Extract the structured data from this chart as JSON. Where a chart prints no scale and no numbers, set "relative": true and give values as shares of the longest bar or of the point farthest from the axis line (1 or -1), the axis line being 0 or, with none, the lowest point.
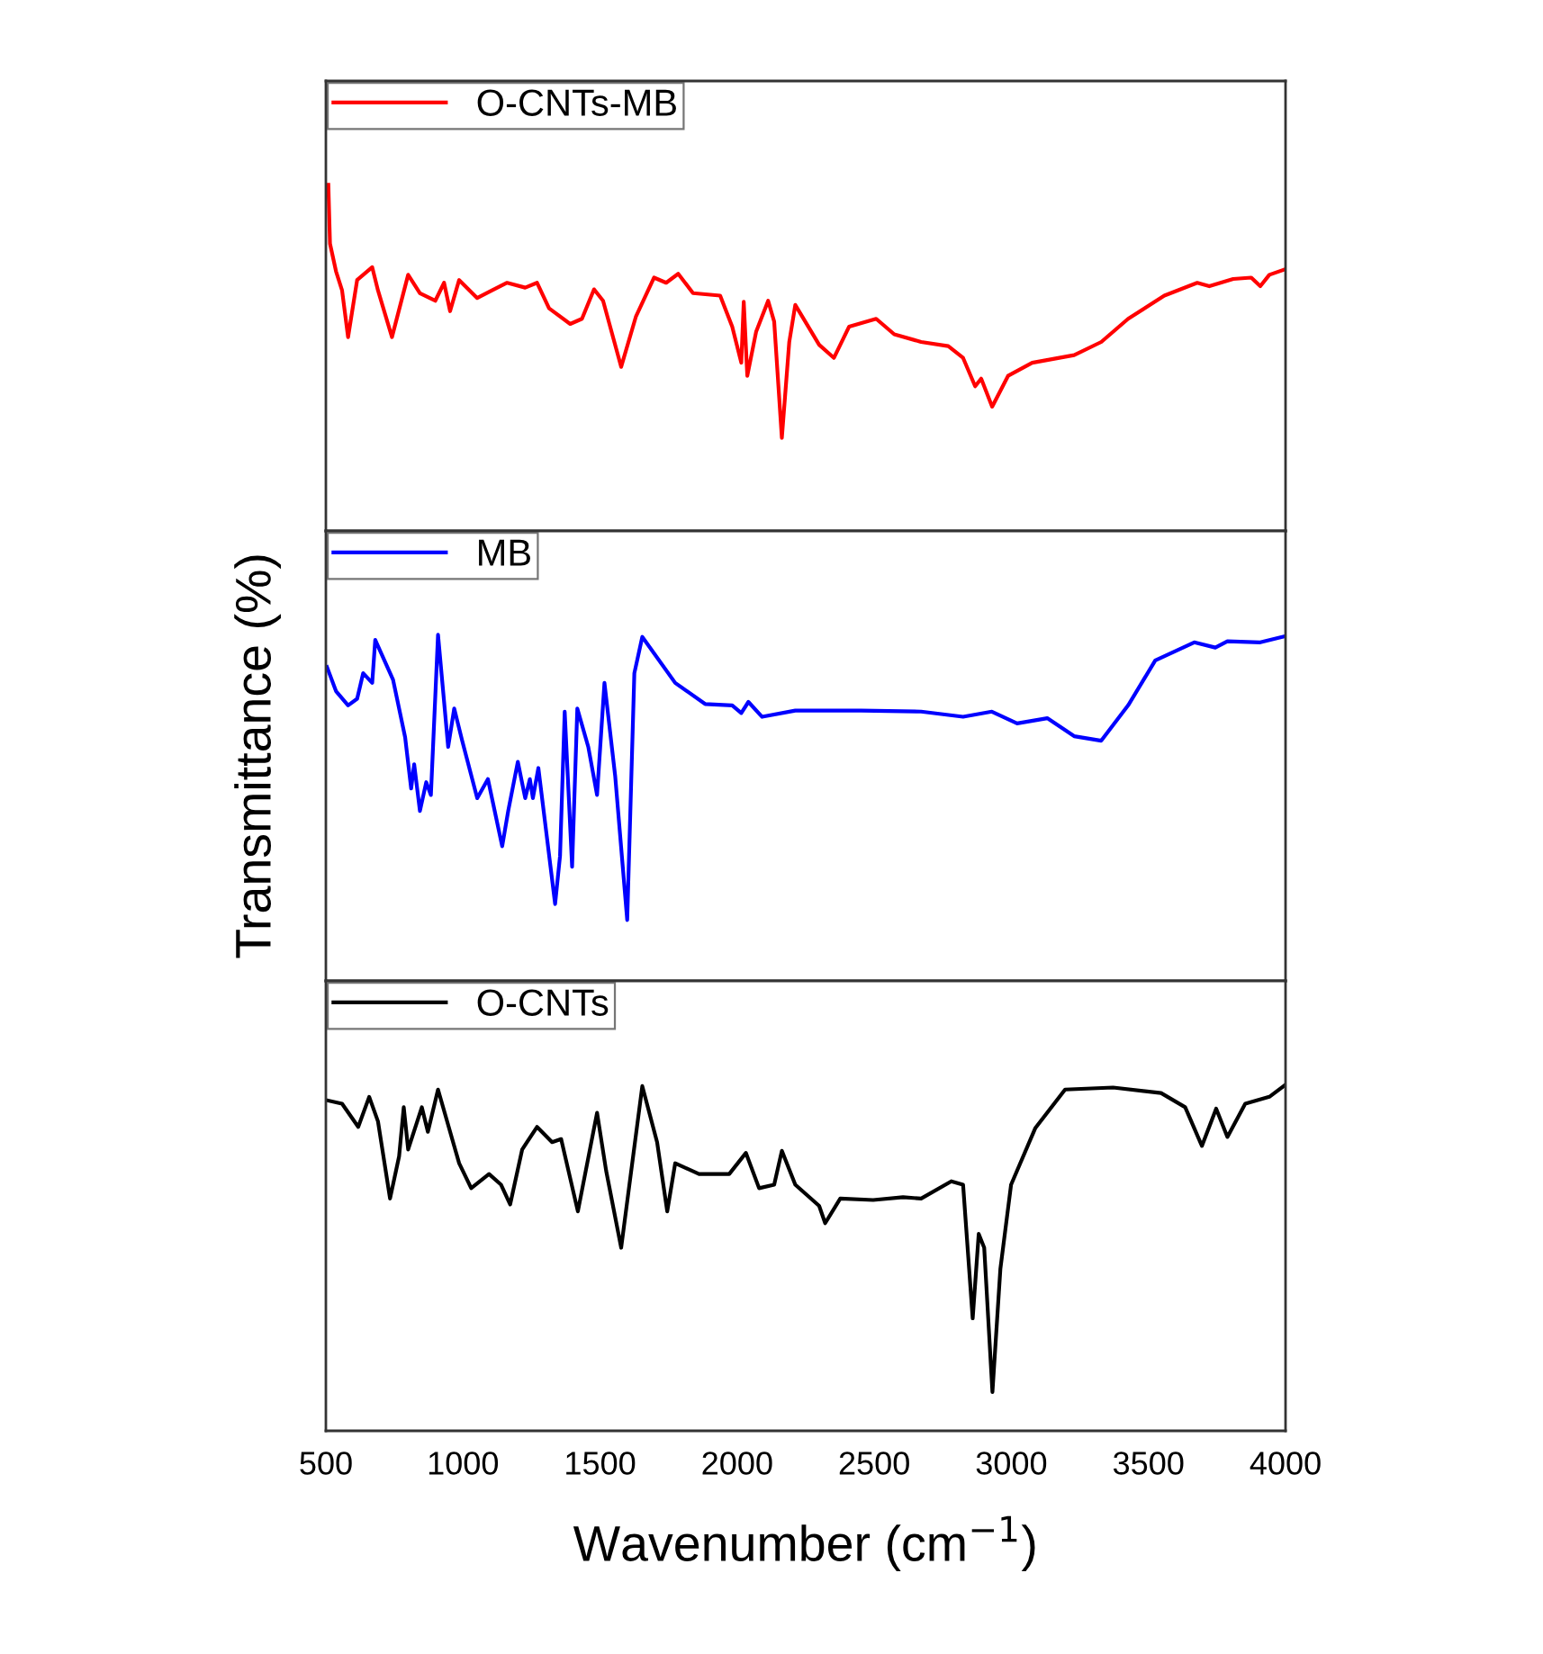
{
  "chart_data": [
    {
      "type": "line",
      "relative": true,
      "legend": "top left",
      "grid": false,
      "tick_labels": false,
      "xlim": [
        500,
        4000
      ],
      "xticks": [
        500,
        1000,
        1500,
        2000,
        2500,
        3000,
        3500,
        4000
      ],
      "series": [
        {
          "name": "O-CNTs-MB",
          "color": "#ff0000",
          "x": [
            509,
            515,
            537,
            559,
            581,
            614,
            669,
            690,
            741,
            800,
            843,
            899,
            931,
            953,
            986,
            1052,
            1106,
            1161,
            1227,
            1270,
            1314,
            1391,
            1434,
            1478,
            1511,
            1577,
            1631,
            1697,
            1741,
            1785,
            1839,
            1938,
            1982,
            2015,
            2024,
            2037,
            2069,
            2113,
            2135,
            2163,
            2190,
            2212,
            2299,
            2353,
            2408,
            2507,
            2573,
            2671,
            2770,
            2824,
            2868,
            2890,
            2930,
            2988,
            3076,
            3229,
            3328,
            3426,
            3558,
            3678,
            3722,
            3809,
            3875,
            3908,
            3941,
            3995
          ],
          "values": [
            1.0,
            0.83,
            0.75,
            0.695,
            0.56,
            0.725,
            0.762,
            0.695,
            0.56,
            0.74,
            0.687,
            0.665,
            0.717,
            0.635,
            0.725,
            0.673,
            0.695,
            0.717,
            0.703,
            0.717,
            0.643,
            0.598,
            0.613,
            0.698,
            0.665,
            0.474,
            0.62,
            0.732,
            0.717,
            0.743,
            0.687,
            0.68,
            0.59,
            0.486,
            0.662,
            0.448,
            0.575,
            0.665,
            0.605,
            0.269,
            0.546,
            0.653,
            0.538,
            0.5,
            0.59,
            0.613,
            0.568,
            0.546,
            0.534,
            0.5,
            0.418,
            0.44,
            0.359,
            0.448,
            0.486,
            0.508,
            0.546,
            0.613,
            0.68,
            0.717,
            0.707,
            0.728,
            0.732,
            0.707,
            0.74,
            0.755
          ]
        }
      ]
    },
    {
      "type": "line",
      "relative": true,
      "legend": "top left",
      "grid": false,
      "tick_labels": false,
      "ylabel": "Transmittance (%)",
      "xlim": [
        500,
        4000
      ],
      "xticks": [
        500,
        1000,
        1500,
        2000,
        2500,
        3000,
        3500,
        4000
      ],
      "series": [
        {
          "name": "MB",
          "color": "#0000ff",
          "x": [
            504,
            537,
            581,
            614,
            636,
            669,
            680,
            745,
            789,
            811,
            822,
            843,
            866,
            883,
            909,
            946,
            968,
            997,
            1052,
            1091,
            1143,
            1165,
            1200,
            1227,
            1244,
            1255,
            1275,
            1336,
            1354,
            1371,
            1398,
            1417,
            1457,
            1489,
            1516,
            1555,
            1599,
            1625,
            1654,
            1774,
            1883,
            1982,
            2015,
            2041,
            2091,
            2212,
            2452,
            2671,
            2824,
            2929,
            3021,
            3131,
            3229,
            3328,
            3426,
            3525,
            3667,
            3744,
            3788,
            3908,
            4000
          ],
          "values": [
            0.907,
            0.837,
            0.796,
            0.815,
            0.889,
            0.861,
            0.985,
            0.87,
            0.704,
            0.556,
            0.626,
            0.491,
            0.574,
            0.537,
            1.0,
            0.676,
            0.787,
            0.694,
            0.528,
            0.583,
            0.389,
            0.491,
            0.633,
            0.528,
            0.583,
            0.528,
            0.615,
            0.222,
            0.361,
            0.778,
            0.33,
            0.787,
            0.676,
            0.537,
            0.861,
            0.593,
            0.176,
            0.889,
            0.994,
            0.861,
            0.8,
            0.796,
            0.774,
            0.806,
            0.763,
            0.781,
            0.781,
            0.778,
            0.763,
            0.778,
            0.744,
            0.759,
            0.707,
            0.694,
            0.796,
            0.926,
            0.978,
            0.963,
            0.981,
            0.978,
            0.996
          ]
        }
      ]
    },
    {
      "type": "line",
      "relative": true,
      "legend": "top left",
      "grid": false,
      "tick_labels": "x",
      "xlabel": "Wavenumber (cm$^{−1}$)",
      "xlim": [
        500,
        4000
      ],
      "xticks": [
        500,
        1000,
        1500,
        2000,
        2500,
        3000,
        3500,
        4000
      ],
      "series": [
        {
          "name": "O-CNTs",
          "color": "#000000",
          "x": [
            504,
            559,
            618,
            658,
            690,
            734,
            767,
            784,
            800,
            850,
            872,
            909,
            986,
            1030,
            1095,
            1139,
            1172,
            1216,
            1270,
            1325,
            1358,
            1419,
            1489,
            1522,
            1577,
            1654,
            1708,
            1745,
            1774,
            1861,
            1971,
            2032,
            2080,
            2135,
            2163,
            2212,
            2299,
            2321,
            2376,
            2496,
            2605,
            2671,
            2781,
            2824,
            2859,
            2881,
            2901,
            2931,
            2960,
            2999,
            3087,
            3196,
            3371,
            3546,
            3634,
            3695,
            3747,
            3788,
            3853,
            3941,
            4000
          ],
          "values": [
            0.955,
            0.945,
            0.878,
            0.965,
            0.894,
            0.671,
            0.793,
            0.935,
            0.813,
            0.935,
            0.864,
            0.986,
            0.773,
            0.701,
            0.742,
            0.711,
            0.654,
            0.813,
            0.878,
            0.834,
            0.843,
            0.634,
            0.919,
            0.752,
            0.529,
            0.996,
            0.834,
            0.634,
            0.773,
            0.742,
            0.742,
            0.803,
            0.701,
            0.711,
            0.809,
            0.711,
            0.65,
            0.6,
            0.671,
            0.667,
            0.675,
            0.671,
            0.721,
            0.711,
            0.325,
            0.569,
            0.529,
            0.112,
            0.468,
            0.711,
            0.874,
            0.986,
            0.992,
            0.976,
            0.935,
            0.823,
            0.931,
            0.849,
            0.945,
            0.965,
            1.0
          ]
        }
      ]
    }
  ]
}
